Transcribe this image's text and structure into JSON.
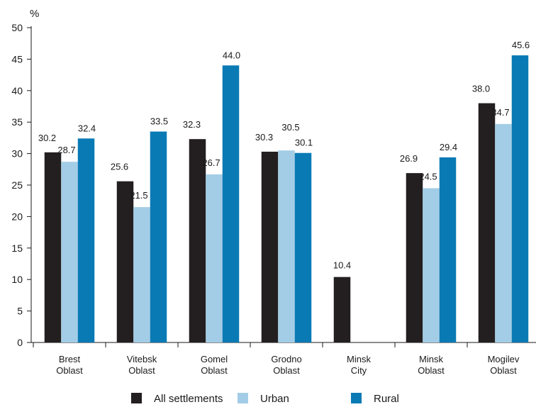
{
  "chart_data": {
    "type": "bar",
    "ylabel": "%",
    "ylim": [
      0,
      50
    ],
    "yticks": [
      0,
      5,
      10,
      15,
      20,
      25,
      30,
      35,
      40,
      45,
      50
    ],
    "grid": false,
    "legend_position": "bottom",
    "categories": [
      [
        "Brest",
        "Oblast"
      ],
      [
        "Vitebsk",
        "Oblast"
      ],
      [
        "Gomel",
        "Oblast"
      ],
      [
        "Grodno",
        "Oblast"
      ],
      [
        "Minsk",
        "City"
      ],
      [
        "Minsk",
        "Oblast"
      ],
      [
        "Mogilev",
        "Oblast"
      ]
    ],
    "series": [
      {
        "name": "All settlements",
        "color": "#231f20",
        "values": [
          30.2,
          25.6,
          32.3,
          30.3,
          10.4,
          26.9,
          38.0
        ],
        "labels": [
          "30.2",
          "25.6",
          "32.3",
          "30.3",
          "10.4",
          "26.9",
          "38.0"
        ]
      },
      {
        "name": "Urban",
        "color": "#a3cde6",
        "values": [
          28.7,
          21.5,
          26.7,
          30.5,
          null,
          24.5,
          34.7
        ],
        "labels": [
          "28.7",
          "21.5",
          "26.7",
          "30.5",
          "",
          "24.5",
          "34.7"
        ]
      },
      {
        "name": "Rural",
        "color": "#0a7ab5",
        "values": [
          32.4,
          33.5,
          44.0,
          30.1,
          null,
          29.4,
          45.6
        ],
        "labels": [
          "32.4",
          "33.5",
          "44.0",
          "30.1",
          "",
          "29.4",
          "45.6"
        ]
      }
    ]
  }
}
